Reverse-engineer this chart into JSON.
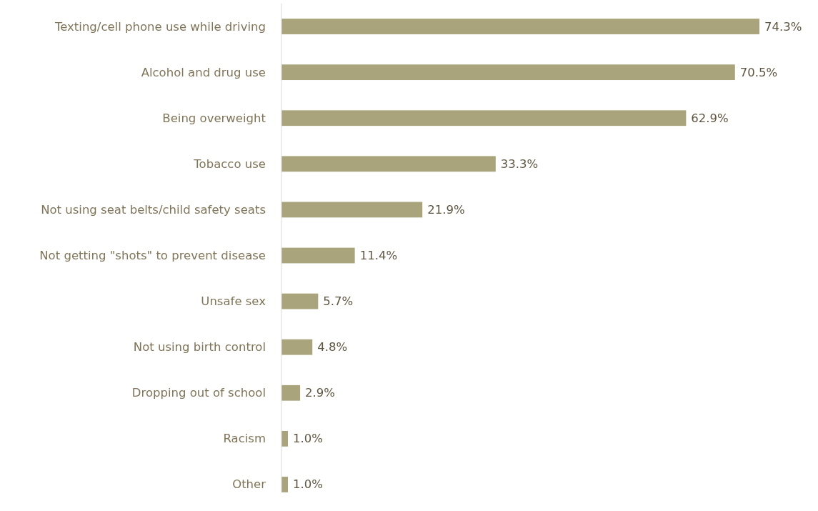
{
  "chart_data": {
    "type": "bar",
    "orientation": "horizontal",
    "color": "#a9a47b",
    "categories": [
      "Texting/cell phone use while driving",
      "Alcohol and drug use",
      "Being overweight",
      "Tobacco use",
      "Not using seat belts/child safety seats",
      "Not getting \"shots\" to prevent disease",
      "Unsafe sex",
      "Not using birth control",
      "Dropping out of school",
      "Racism",
      "Other"
    ],
    "values": [
      74.3,
      70.5,
      62.9,
      33.3,
      21.9,
      11.4,
      5.7,
      4.8,
      2.9,
      1.0,
      1.0
    ],
    "value_labels": [
      "74.3%",
      "70.5%",
      "62.9%",
      "33.3%",
      "21.9%",
      "11.4%",
      "5.7%",
      "4.8%",
      "2.9%",
      "1.0%",
      "1.0%"
    ]
  }
}
